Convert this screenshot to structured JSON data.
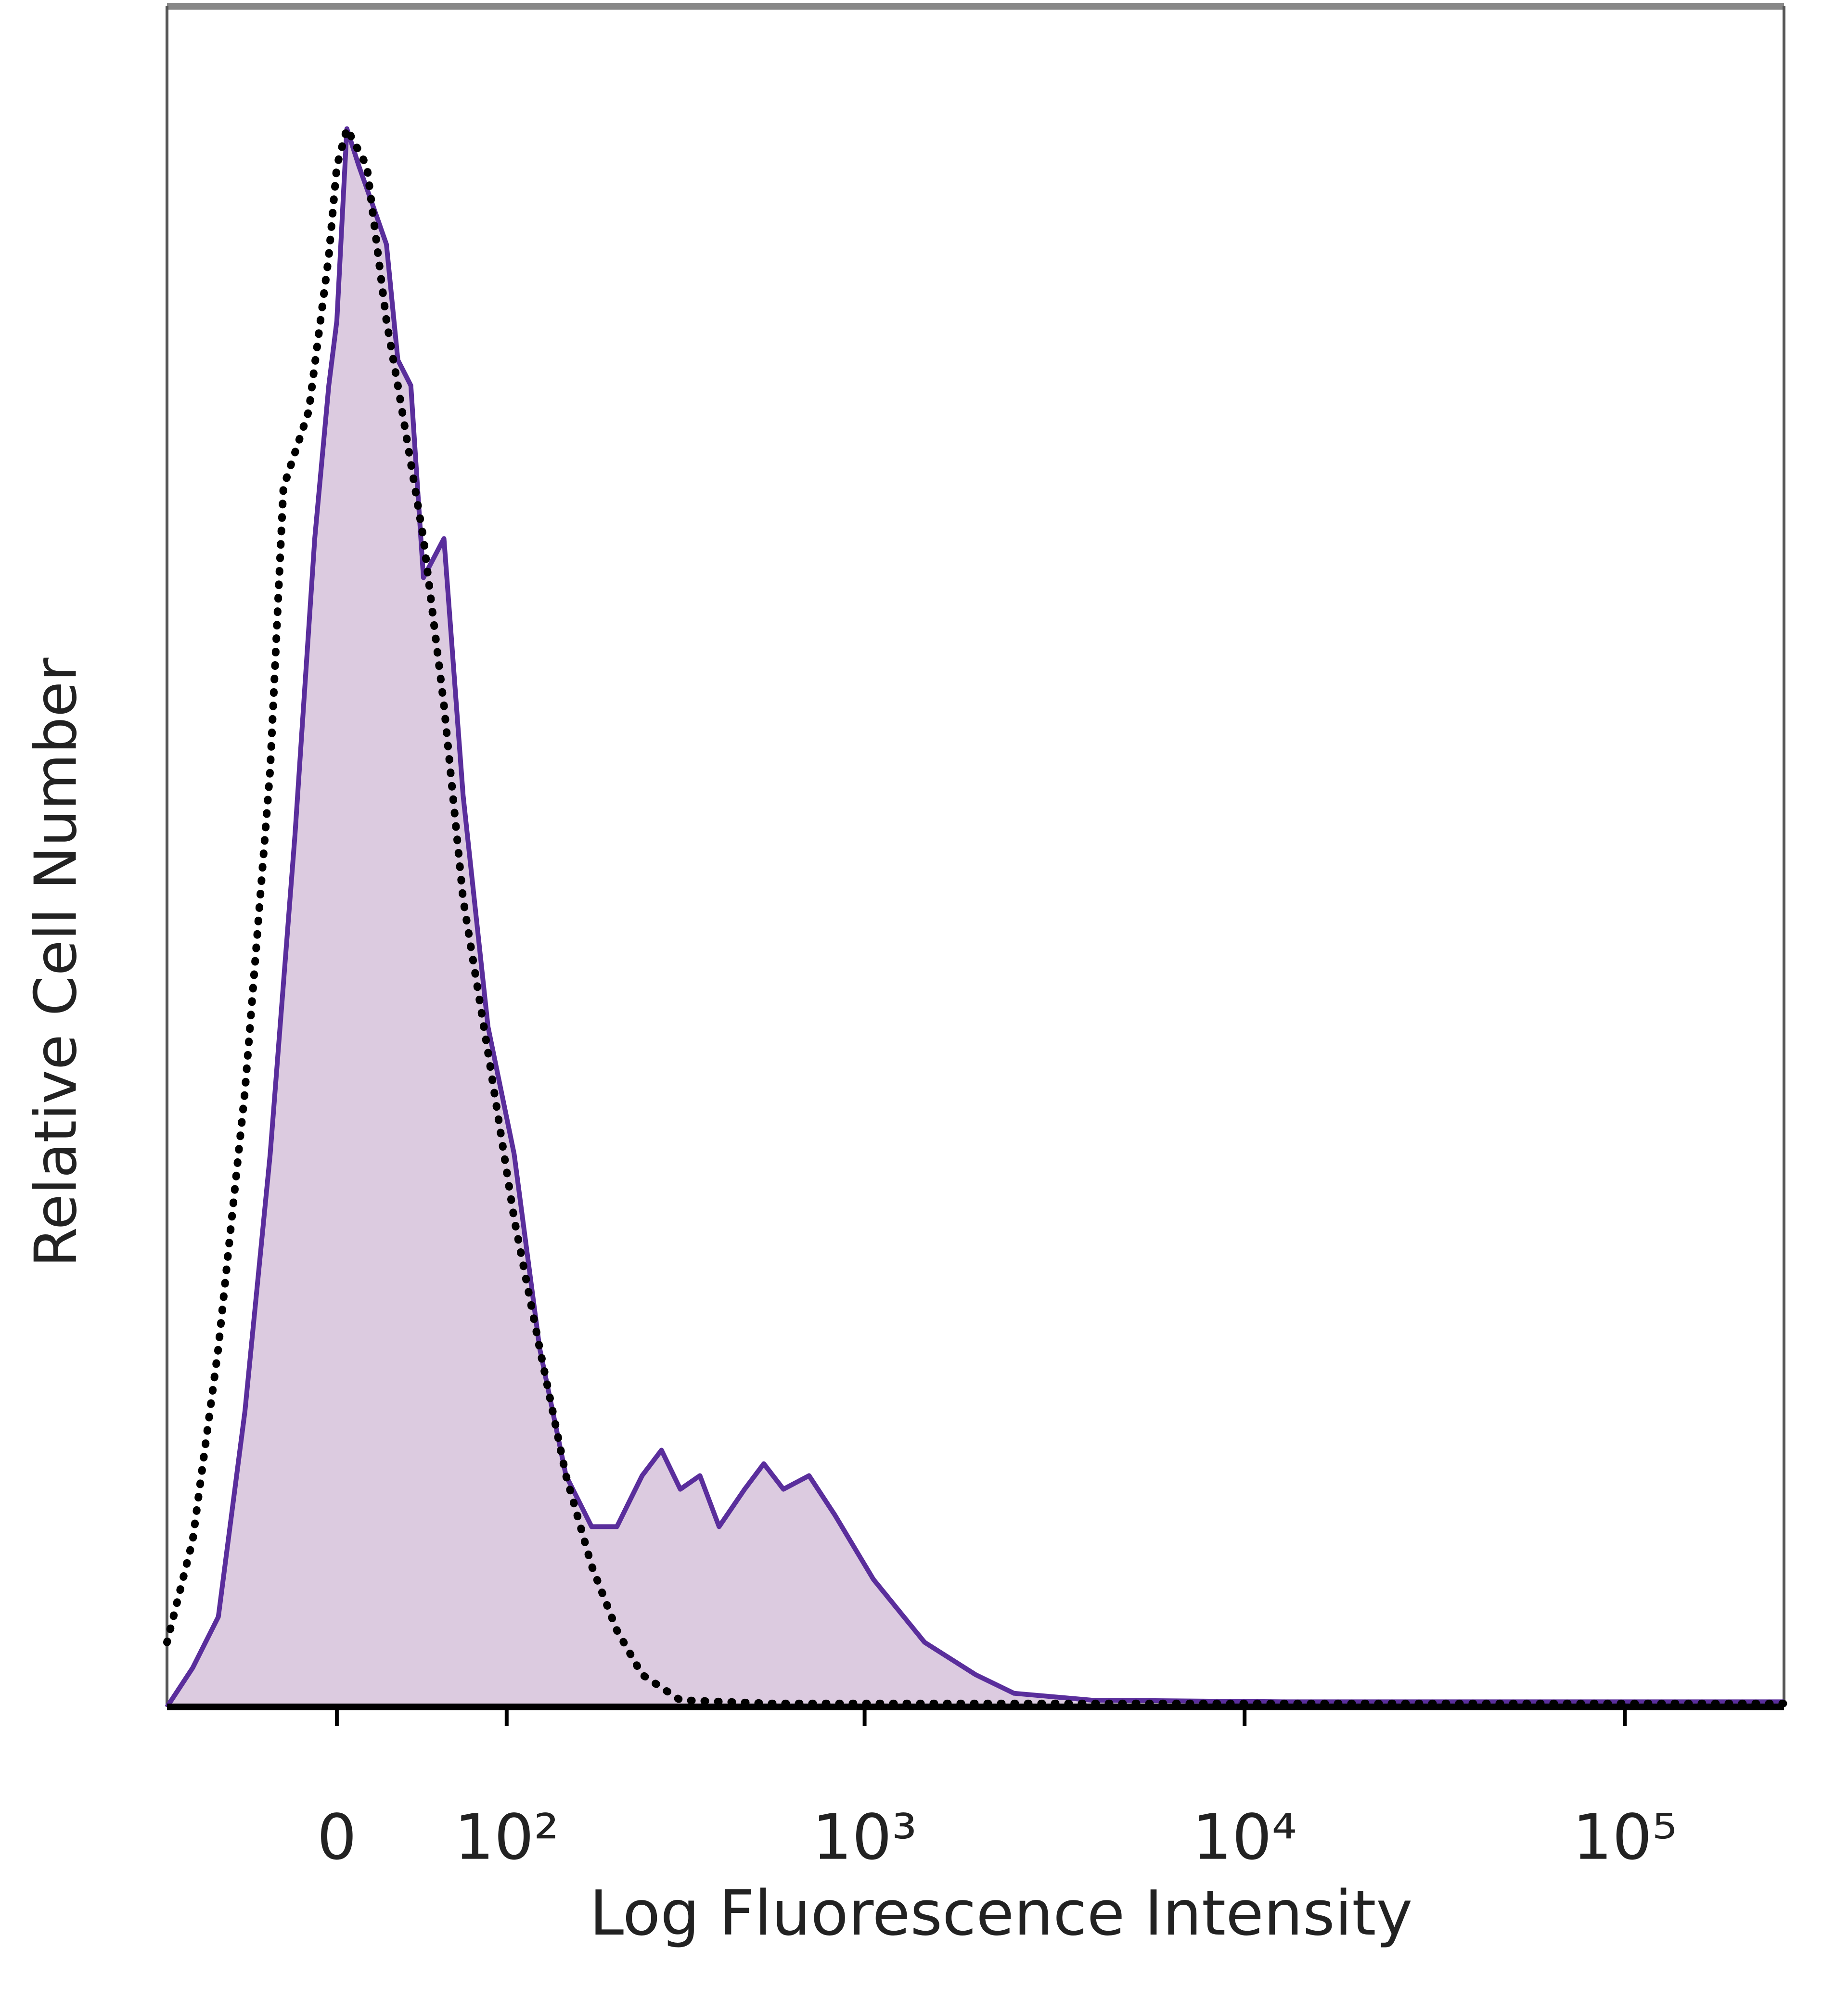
{
  "chart_data": {
    "type": "histogram-overlay",
    "xlabel": "Log Fluorescence Intensity",
    "ylabel": "Relative Cell Number",
    "xscale": "arcsinh",
    "xlim": [
      -100,
      262144
    ],
    "xticks": [
      0,
      {
        "value": 100,
        "label": "10²"
      },
      {
        "value": 1000,
        "label": "10³"
      },
      {
        "value": 10000,
        "label": "10⁴"
      },
      {
        "value": 100000,
        "label": "10⁵"
      }
    ],
    "ylim": [
      0,
      100
    ],
    "series": [
      {
        "color": "#5a2e9c",
        "fill": "#dccbe0",
        "line": "solid",
        "x": [
          -100,
          -81,
          -64,
          -48,
          -34,
          -21,
          -11,
          -4,
          0,
          5,
          11,
          18,
          25,
          31,
          38,
          45,
          57,
          69,
          86,
          106,
          128,
          154,
          183,
          216,
          254,
          287,
          323,
          365,
          411,
          481,
          541,
          610,
          713,
          834,
          1055,
          1439,
          1960,
          2476,
          3950,
          12700,
          262144
        ],
        "values": [
          0,
          2.3,
          5.3,
          17.4,
          32.5,
          51.3,
          68.7,
          77.7,
          81.5,
          92.8,
          90.6,
          88.3,
          86,
          79.2,
          77.7,
          66.4,
          68.7,
          53.6,
          40,
          32.5,
          21.1,
          13.6,
          10.6,
          10.6,
          13.6,
          15.1,
          12.8,
          13.6,
          10.6,
          12.8,
          14.3,
          12.8,
          13.6,
          11.3,
          7.5,
          3.8,
          1.9,
          0.8,
          0.4,
          0.3,
          0.3
        ]
      },
      {
        "color": "#000000",
        "line": "dotted",
        "x": [
          -100,
          -81,
          -64,
          -48,
          -34,
          -27,
          -14,
          -4,
          0,
          5,
          15,
          25,
          31,
          45,
          57,
          69,
          86,
          106,
          128,
          154,
          183,
          216,
          254,
          323,
          563,
          262144
        ],
        "values": [
          3.8,
          9.8,
          21.1,
          36.2,
          55.1,
          71.7,
          76.2,
          85.3,
          90.6,
          92.8,
          90.6,
          81.5,
          77.7,
          68.7,
          58.9,
          47.5,
          38.5,
          28.7,
          21.1,
          13.6,
          8.3,
          4.5,
          1.9,
          0.4,
          0.2,
          0.2
        ]
      }
    ]
  }
}
